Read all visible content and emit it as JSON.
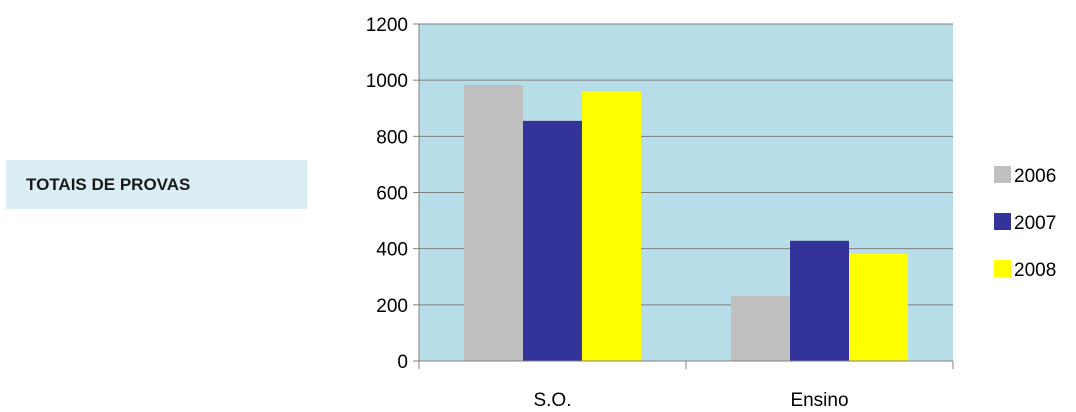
{
  "chart_data": {
    "type": "bar",
    "title": "TOTAIS DE PROVAS",
    "categories": [
      "S.O.",
      "Ensino"
    ],
    "series": [
      {
        "name": "2006",
        "color": "#c0c0c0",
        "values": [
          983,
          232
        ]
      },
      {
        "name": "2007",
        "color": "#333399",
        "values": [
          855,
          428
        ]
      },
      {
        "name": "2008",
        "color": "#ffff00",
        "values": [
          960,
          383
        ]
      }
    ],
    "ylim": [
      0,
      1200
    ],
    "yticks": [
      0,
      200,
      400,
      600,
      800,
      1000,
      1200
    ],
    "grid": true,
    "plot_background": "#b7dee8",
    "legend_position": "right"
  }
}
